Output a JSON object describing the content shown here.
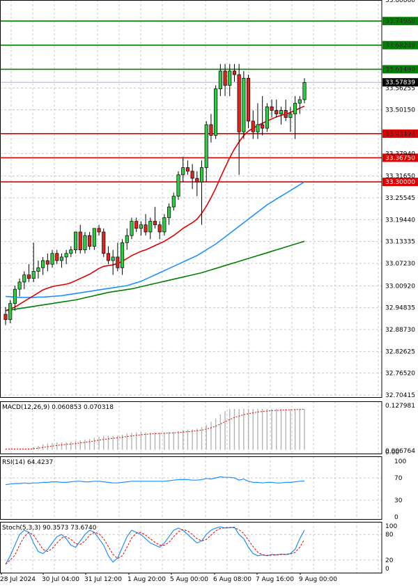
{
  "chart_data": [
    {
      "type": "candlestick",
      "panel": "price",
      "ylim": [
        32.70415,
        33.8086
      ],
      "y_ticks": [
        "33.80860",
        "33.74980",
        "33.68240",
        "33.61490",
        "33.56255",
        "33.50150",
        "33.43490",
        "33.37940",
        "33.31650",
        "33.25545",
        "33.19440",
        "33.13335",
        "33.07230",
        "33.00920",
        "32.94835",
        "32.88730",
        "32.82625",
        "32.76520",
        "32.70415"
      ],
      "x_labels": [
        "28 Jul 2024",
        "30 Jul 04:00",
        "31 Jul 12:00",
        "1 Aug 20:00",
        "5 Aug 00:00",
        "6 Aug 08:00",
        "7 Aug 16:00",
        "9 Aug 00:00"
      ],
      "current_price": "33.57839",
      "levels": [
        {
          "label": "33.74980",
          "value": 33.7498,
          "color": "#008000"
        },
        {
          "label": "33.68240",
          "value": 33.6824,
          "color": "#008000"
        },
        {
          "label": "33.61490",
          "value": 33.6149,
          "color": "#008000"
        },
        {
          "label": "33.43490",
          "value": 33.4349,
          "color": "#e00000"
        },
        {
          "label": "33.36750",
          "value": 33.3675,
          "color": "#e00000"
        },
        {
          "label": "33.30000",
          "value": 33.3,
          "color": "#e00000"
        }
      ],
      "candles": [
        [
          32.93,
          32.95,
          32.9,
          32.915
        ],
        [
          32.915,
          32.97,
          32.905,
          32.96
        ],
        [
          32.96,
          33.01,
          32.94,
          33.0
        ],
        [
          33.0,
          33.03,
          32.98,
          33.02
        ],
        [
          33.02,
          33.05,
          33.0,
          33.04
        ],
        [
          33.04,
          33.07,
          33.02,
          33.03
        ],
        [
          33.03,
          33.13,
          33.02,
          33.05
        ],
        [
          33.05,
          33.08,
          33.03,
          33.06
        ],
        [
          33.06,
          33.09,
          33.04,
          33.08
        ],
        [
          33.08,
          33.1,
          33.05,
          33.07
        ],
        [
          33.07,
          33.11,
          33.06,
          33.1
        ],
        [
          33.1,
          33.11,
          33.07,
          33.08
        ],
        [
          33.08,
          33.1,
          33.06,
          33.09
        ],
        [
          33.09,
          33.11,
          33.07,
          33.1
        ],
        [
          33.1,
          33.12,
          33.09,
          33.11
        ],
        [
          33.11,
          33.16,
          33.1,
          33.16
        ],
        [
          33.16,
          33.18,
          33.1,
          33.11
        ],
        [
          33.11,
          33.16,
          33.1,
          33.15
        ],
        [
          33.15,
          33.16,
          33.11,
          33.12
        ],
        [
          33.12,
          33.17,
          33.11,
          33.17
        ],
        [
          33.17,
          33.18,
          33.15,
          33.16
        ],
        [
          33.16,
          33.17,
          33.09,
          33.1
        ],
        [
          33.1,
          33.12,
          33.07,
          33.08
        ],
        [
          33.08,
          33.11,
          33.04,
          33.09
        ],
        [
          33.09,
          33.13,
          33.05,
          33.06
        ],
        [
          33.06,
          33.14,
          33.04,
          33.13
        ],
        [
          33.13,
          33.17,
          33.11,
          33.15
        ],
        [
          33.15,
          33.2,
          33.14,
          33.19
        ],
        [
          33.19,
          33.2,
          33.16,
          33.17
        ],
        [
          33.17,
          33.19,
          33.15,
          33.18
        ],
        [
          33.18,
          33.21,
          33.15,
          33.16
        ],
        [
          33.16,
          33.2,
          33.14,
          33.19
        ],
        [
          33.19,
          33.23,
          33.17,
          33.18
        ],
        [
          33.18,
          33.19,
          33.14,
          33.16
        ],
        [
          33.16,
          33.21,
          33.15,
          33.2
        ],
        [
          33.2,
          33.24,
          33.18,
          33.23
        ],
        [
          33.23,
          33.27,
          33.22,
          33.26
        ],
        [
          33.26,
          33.33,
          33.25,
          33.32
        ],
        [
          33.32,
          33.37,
          33.3,
          33.34
        ],
        [
          33.34,
          33.36,
          33.32,
          33.33
        ],
        [
          33.33,
          33.35,
          33.28,
          33.31
        ],
        [
          33.31,
          33.33,
          33.26,
          33.3
        ],
        [
          33.3,
          33.36,
          33.18,
          33.34
        ],
        [
          33.34,
          33.47,
          33.3,
          33.46
        ],
        [
          33.46,
          33.49,
          33.41,
          33.43
        ],
        [
          33.43,
          33.57,
          33.42,
          33.56
        ],
        [
          33.56,
          33.63,
          33.54,
          33.61
        ],
        [
          33.61,
          33.63,
          33.54,
          33.57
        ],
        [
          33.57,
          33.63,
          33.54,
          33.61
        ],
        [
          33.61,
          33.63,
          33.58,
          33.6
        ],
        [
          33.6,
          33.63,
          33.32,
          33.44
        ],
        [
          33.44,
          33.61,
          33.42,
          33.59
        ],
        [
          33.59,
          33.6,
          33.45,
          33.47
        ],
        [
          33.47,
          33.5,
          33.42,
          33.44
        ],
        [
          33.44,
          33.52,
          33.42,
          33.46
        ],
        [
          33.46,
          33.54,
          33.43,
          33.45
        ],
        [
          33.45,
          33.52,
          33.44,
          33.51
        ],
        [
          33.51,
          33.53,
          33.48,
          33.5
        ],
        [
          33.5,
          33.53,
          33.48,
          33.49
        ],
        [
          33.49,
          33.51,
          33.46,
          33.5
        ],
        [
          33.5,
          33.53,
          33.47,
          33.48
        ],
        [
          33.48,
          33.51,
          33.44,
          33.49
        ],
        [
          33.49,
          33.54,
          33.42,
          33.52
        ],
        [
          33.52,
          33.54,
          33.49,
          33.53
        ],
        [
          33.53,
          33.59,
          33.52,
          33.578
        ]
      ],
      "ma_red": [
        32.94,
        32.945,
        32.95,
        32.958,
        32.966,
        32.974,
        32.982,
        32.99,
        32.998,
        33.003,
        33.007,
        33.01,
        33.012,
        33.014,
        33.018,
        33.024,
        33.03,
        33.036,
        33.042,
        33.05,
        33.058,
        33.064,
        33.066,
        33.068,
        33.072,
        33.078,
        33.086,
        33.094,
        33.1,
        33.106,
        33.11,
        33.116,
        33.122,
        33.128,
        33.134,
        33.142,
        33.15,
        33.16,
        33.17,
        33.178,
        33.186,
        33.196,
        33.212,
        33.232,
        33.256,
        33.282,
        33.312,
        33.34,
        33.368,
        33.392,
        33.412,
        33.43,
        33.442,
        33.45,
        33.458,
        33.464,
        33.47,
        33.476,
        33.482,
        33.486,
        33.49,
        33.494,
        33.5,
        33.506,
        33.512
      ],
      "ma_blue": [
        32.98,
        32.979,
        32.978,
        32.977,
        32.977,
        32.977,
        32.977,
        32.978,
        32.978,
        32.979,
        32.98,
        32.981,
        32.982,
        32.984,
        32.986,
        32.988,
        32.99,
        32.992,
        32.994,
        32.996,
        32.998,
        33.0,
        33.002,
        33.004,
        33.006,
        33.008,
        33.01,
        33.014,
        33.018,
        33.022,
        33.028,
        33.034,
        33.04,
        33.046,
        33.052,
        33.058,
        33.064,
        33.07,
        33.076,
        33.082,
        33.088,
        33.094,
        33.102,
        33.11,
        33.118,
        33.126,
        33.136,
        33.146,
        33.156,
        33.166,
        33.176,
        33.186,
        33.196,
        33.206,
        33.216,
        33.226,
        33.236,
        33.244,
        33.252,
        33.26,
        33.268,
        33.276,
        33.284,
        33.292,
        33.3
      ],
      "ma_green": [
        32.94,
        32.942,
        32.944,
        32.946,
        32.948,
        32.95,
        32.952,
        32.954,
        32.956,
        32.958,
        32.96,
        32.962,
        32.964,
        32.966,
        32.968,
        32.97,
        32.973,
        32.976,
        32.979,
        32.982,
        32.985,
        32.988,
        32.991,
        32.993,
        32.995,
        32.997,
        32.999,
        33.001,
        33.004,
        33.007,
        33.01,
        33.013,
        33.016,
        33.019,
        33.022,
        33.025,
        33.028,
        33.031,
        33.034,
        33.037,
        33.04,
        33.043,
        33.046,
        33.05,
        33.054,
        33.058,
        33.062,
        33.066,
        33.07,
        33.074,
        33.078,
        33.082,
        33.086,
        33.09,
        33.094,
        33.098,
        33.102,
        33.106,
        33.11,
        33.114,
        33.118,
        33.122,
        33.126,
        33.13,
        33.134
      ]
    },
    {
      "type": "macd",
      "panel": "macd",
      "title": "MACD(12,26,9) 0.060853 0.070318",
      "ylim": [
        -0.006764,
        0.127981
      ],
      "y_ticks": [
        "0.127981",
        "0.006764",
        "0.00"
      ]
    },
    {
      "type": "line",
      "panel": "rsi",
      "title": "RSI(14) 64.4237",
      "ylim": [
        0,
        100
      ],
      "y_ticks": [
        "100",
        "70",
        "30",
        "0"
      ],
      "values": [
        58,
        59,
        60,
        60,
        61,
        60,
        61,
        61,
        62,
        62,
        63,
        63,
        62,
        62,
        63,
        64,
        64,
        63,
        63,
        64,
        64,
        63,
        62,
        61,
        61,
        62,
        63,
        64,
        64,
        64,
        64,
        64,
        64,
        64,
        64,
        65,
        66,
        67,
        67,
        67,
        66,
        66,
        67,
        69,
        68,
        70,
        72,
        71,
        71,
        70,
        66,
        68,
        64,
        62,
        62,
        61,
        62,
        62,
        61,
        61,
        62,
        62,
        63,
        64,
        64.4
      ]
    },
    {
      "type": "line",
      "panel": "stoch",
      "title": "Stoch(5,3,3) 90.3573 73.6740",
      "ylim": [
        0,
        100
      ],
      "y_ticks": [
        "100",
        "80",
        "20",
        "0"
      ]
    }
  ]
}
